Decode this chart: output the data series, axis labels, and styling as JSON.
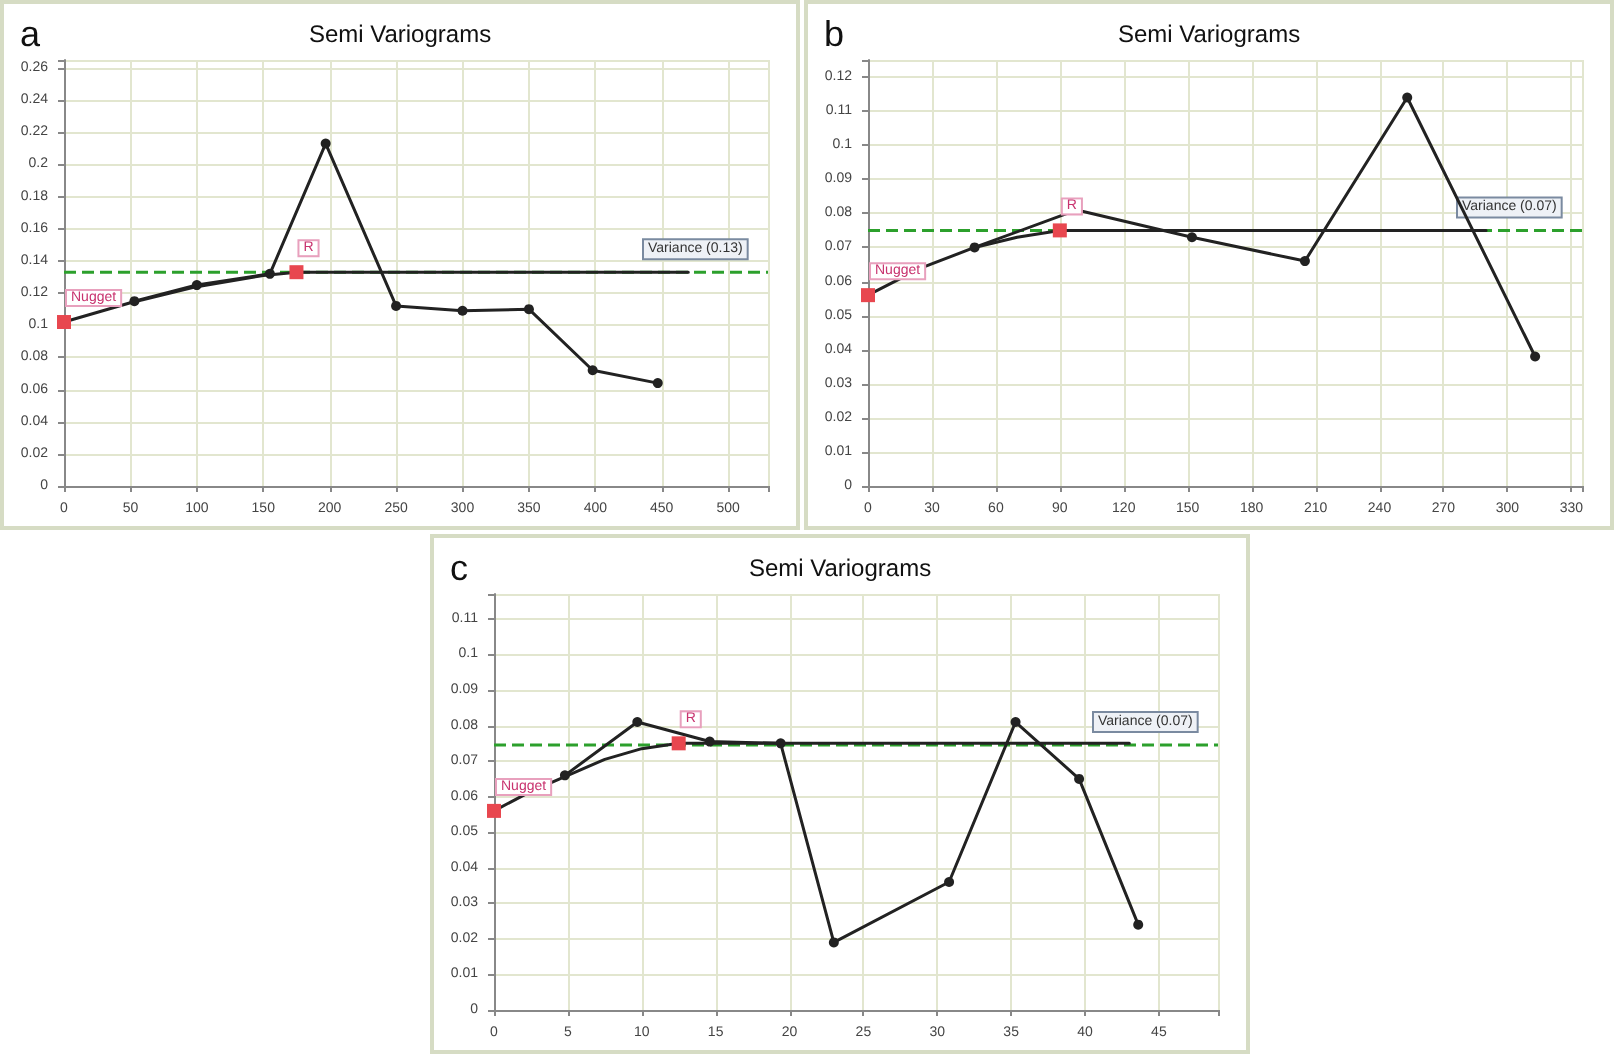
{
  "chart_data": [
    {
      "type": "line",
      "title": "Semi Variograms",
      "annotations": [
        "a",
        {
          "text": "Nugget",
          "x": 0,
          "y": 0.102
        },
        {
          "text": "R",
          "x": 175,
          "y": 0.133
        }
      ],
      "xlim": [
        0,
        530
      ],
      "xticks": [
        0,
        50,
        100,
        150,
        200,
        250,
        300,
        350,
        400,
        450,
        500
      ],
      "ylim": [
        0,
        0.265
      ],
      "yticks": [
        0,
        0.02,
        0.04,
        0.06,
        0.08,
        0.1,
        0.12,
        0.14,
        0.16,
        0.18,
        0.2,
        0.22,
        0.24,
        0.26
      ],
      "grid": true,
      "ref_lines": [
        {
          "axis": "y",
          "value": 0.133,
          "label": "Variance (0.13)",
          "color": "#2ca02c",
          "line_style": "dashed"
        }
      ],
      "series": [
        {
          "color": "#222222",
          "marker": "circle",
          "x": [
            53,
            100,
            155,
            197,
            250,
            300,
            350,
            398,
            447
          ],
          "values": [
            0.115,
            0.125,
            0.132,
            0.213,
            0.112,
            0.109,
            0.11,
            0.072,
            0.064
          ]
        },
        {
          "color": "#222222",
          "marker": "none",
          "x": [
            0,
            50,
            100,
            150,
            175,
            470
          ],
          "values": [
            0.102,
            0.114,
            0.124,
            0.131,
            0.133,
            0.133
          ]
        }
      ]
    },
    {
      "type": "line",
      "title": "Semi Variograms",
      "annotations": [
        "b",
        {
          "text": "Nugget",
          "x": 0,
          "y": 0.056
        },
        {
          "text": "R",
          "x": 90,
          "y": 0.075
        }
      ],
      "xlim": [
        0,
        335
      ],
      "xticks": [
        0,
        30,
        60,
        90,
        120,
        150,
        180,
        210,
        240,
        270,
        300,
        330
      ],
      "ylim": [
        0,
        0.125
      ],
      "yticks": [
        0,
        0.01,
        0.02,
        0.03,
        0.04,
        0.05,
        0.06,
        0.07,
        0.08,
        0.09,
        0.1,
        0.11,
        0.12
      ],
      "grid": true,
      "ref_lines": [
        {
          "axis": "y",
          "value": 0.075,
          "label": "Variance (0.07)",
          "color": "#2ca02c",
          "line_style": "dashed"
        }
      ],
      "series": [
        {
          "color": "#222222",
          "marker": "circle",
          "x": [
            50,
            98,
            152,
            205,
            253,
            313
          ],
          "values": [
            0.07,
            0.081,
            0.073,
            0.066,
            0.114,
            0.038
          ]
        },
        {
          "color": "#222222",
          "marker": "none",
          "x": [
            0,
            25,
            50,
            70,
            90,
            290
          ],
          "values": [
            0.056,
            0.064,
            0.07,
            0.073,
            0.075,
            0.075
          ]
        }
      ]
    },
    {
      "type": "line",
      "title": "Semi Variograms",
      "annotations": [
        "c",
        {
          "text": "Nugget",
          "x": 0,
          "y": 0.056
        },
        {
          "text": "R",
          "x": 12.5,
          "y": 0.075
        }
      ],
      "xlim": [
        0,
        49
      ],
      "xticks": [
        0,
        5,
        10,
        15,
        20,
        25,
        30,
        35,
        40,
        45
      ],
      "ylim": [
        0,
        0.117
      ],
      "yticks": [
        0,
        0.01,
        0.02,
        0.03,
        0.04,
        0.05,
        0.06,
        0.07,
        0.08,
        0.09,
        0.1,
        0.11
      ],
      "grid": true,
      "ref_lines": [
        {
          "axis": "y",
          "value": 0.0745,
          "label": "Variance (0.07)",
          "color": "#2ca02c",
          "line_style": "dashed"
        }
      ],
      "series": [
        {
          "color": "#222222",
          "marker": "circle",
          "x": [
            4.8,
            9.7,
            14.6,
            19.4,
            23,
            30.8,
            35.3,
            39.6,
            43.6
          ],
          "values": [
            0.066,
            0.081,
            0.0755,
            0.075,
            0.019,
            0.036,
            0.081,
            0.065,
            0.024
          ]
        },
        {
          "color": "#222222",
          "marker": "none",
          "x": [
            0,
            2.5,
            5,
            7.5,
            10,
            12.5,
            43
          ],
          "values": [
            0.056,
            0.0615,
            0.066,
            0.0705,
            0.0735,
            0.075,
            0.075
          ]
        }
      ]
    }
  ]
}
